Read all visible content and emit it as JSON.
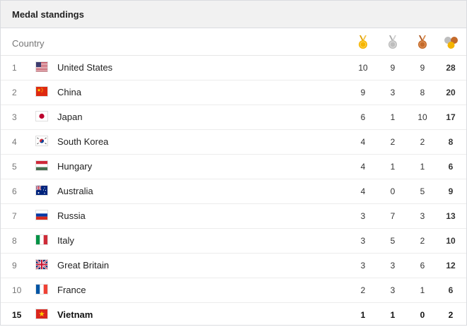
{
  "panel": {
    "title": "Medal standings"
  },
  "table": {
    "country_header": "Country",
    "medal_headers": [
      {
        "icon": "gold-medal-icon",
        "color": "#f5b400"
      },
      {
        "icon": "silver-medal-icon",
        "color": "#b9b9b9"
      },
      {
        "icon": "bronze-medal-icon",
        "color": "#c46a2b"
      },
      {
        "icon": "total-medals-icon"
      }
    ],
    "rows": [
      {
        "rank": "1",
        "country": "United States",
        "flag": "us-flag-icon",
        "gold": "10",
        "silver": "9",
        "bronze": "9",
        "total": "28"
      },
      {
        "rank": "2",
        "country": "China",
        "flag": "china-flag-icon",
        "gold": "9",
        "silver": "3",
        "bronze": "8",
        "total": "20"
      },
      {
        "rank": "3",
        "country": "Japan",
        "flag": "japan-flag-icon",
        "gold": "6",
        "silver": "1",
        "bronze": "10",
        "total": "17"
      },
      {
        "rank": "4",
        "country": "South Korea",
        "flag": "south-korea-flag-icon",
        "gold": "4",
        "silver": "2",
        "bronze": "2",
        "total": "8"
      },
      {
        "rank": "5",
        "country": "Hungary",
        "flag": "hungary-flag-icon",
        "gold": "4",
        "silver": "1",
        "bronze": "1",
        "total": "6"
      },
      {
        "rank": "6",
        "country": "Australia",
        "flag": "australia-flag-icon",
        "gold": "4",
        "silver": "0",
        "bronze": "5",
        "total": "9"
      },
      {
        "rank": "7",
        "country": "Russia",
        "flag": "russia-flag-icon",
        "gold": "3",
        "silver": "7",
        "bronze": "3",
        "total": "13"
      },
      {
        "rank": "8",
        "country": "Italy",
        "flag": "italy-flag-icon",
        "gold": "3",
        "silver": "5",
        "bronze": "2",
        "total": "10"
      },
      {
        "rank": "9",
        "country": "Great Britain",
        "flag": "great-britain-flag-icon",
        "gold": "3",
        "silver": "3",
        "bronze": "6",
        "total": "12"
      },
      {
        "rank": "10",
        "country": "France",
        "flag": "france-flag-icon",
        "gold": "2",
        "silver": "3",
        "bronze": "1",
        "total": "6"
      },
      {
        "rank": "15",
        "country": "Vietnam",
        "flag": "vietnam-flag-icon",
        "gold": "1",
        "silver": "1",
        "bronze": "0",
        "total": "2",
        "highlight": true
      }
    ]
  }
}
